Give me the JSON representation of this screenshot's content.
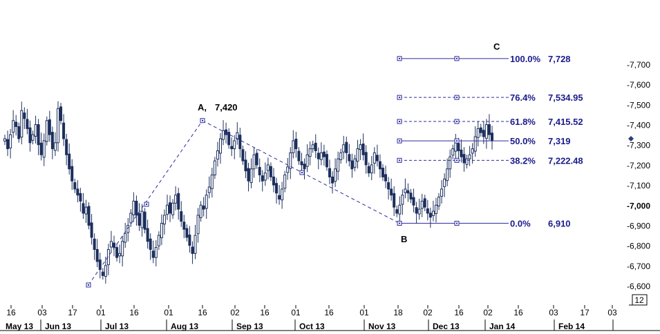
{
  "chart_data": {
    "type": "candlestick",
    "y_axis": {
      "range": [
        6550,
        7780
      ],
      "ticks": [
        "-7,700",
        "-7,600",
        "-7,500",
        "-7,400",
        "-7,300",
        "-7,200",
        "-7,100",
        "-7,000",
        "-6,900",
        "-6,800",
        "-6,700",
        "-6,600"
      ],
      "tick_values": [
        7700,
        7600,
        7500,
        7400,
        7300,
        7200,
        7100,
        7000,
        6900,
        6800,
        6700,
        6600
      ],
      "emphasized_tick": "-7,000",
      "last_value_marker": 7330
    },
    "x_axis": {
      "day_ticks": [
        "16",
        "03",
        "17",
        "01",
        "16",
        "01",
        "16",
        "02",
        "16",
        "01",
        "16",
        "01",
        "18",
        "02",
        "16",
        "02",
        "16",
        "03",
        "17",
        "03"
      ],
      "months": [
        "May 13",
        "Jun 13",
        "Jul 13",
        "Aug 13",
        "Sep 13",
        "Oct 13",
        "Nov 13",
        "Dec 13",
        "Jan 14",
        "Feb 14"
      ],
      "period_box": "12"
    },
    "points": {
      "A": {
        "label": "A,",
        "value": "7,420"
      },
      "B": {
        "label": "B"
      },
      "C": {
        "label": "C"
      }
    },
    "fib_levels": [
      {
        "pct": "100.0%",
        "value": "7,728",
        "price": 7728,
        "style": "solid"
      },
      {
        "pct": "76.4%",
        "value": "7,534.95",
        "price": 7534.95,
        "style": "dashed"
      },
      {
        "pct": "61.8%",
        "value": "7,415.52",
        "price": 7415.52,
        "style": "dashed"
      },
      {
        "pct": "50.0%",
        "value": "7,319",
        "price": 7319,
        "style": "solid"
      },
      {
        "pct": "38.2%",
        "value": "7,222.48",
        "price": 7222.48,
        "style": "dashed"
      },
      {
        "pct": "0.0%",
        "value": "6,910",
        "price": 6910,
        "style": "solid"
      }
    ],
    "series": [
      {
        "values": [
          7330,
          7280,
          7350,
          7420,
          7390,
          7330,
          7470,
          7430,
          7380,
          7310,
          7350,
          7400,
          7300,
          7250,
          7320,
          7420,
          7350,
          7280,
          7310,
          7480,
          7420,
          7330,
          7250,
          7180,
          7120,
          7080,
          7050,
          7020,
          6960,
          6990,
          6900,
          6840,
          6780,
          6720,
          6680,
          6650,
          6700,
          6780,
          6820,
          6790,
          6740,
          6760,
          6820,
          6860,
          6900,
          6960,
          7020,
          6950,
          6900,
          6970,
          6880,
          6820,
          6780,
          6740,
          6790,
          6850,
          6910,
          6950,
          7000,
          6960,
          7010,
          7050,
          6980,
          6920,
          6880,
          6840,
          6800,
          6760,
          6850,
          6950,
          7000,
          6980,
          7050,
          7090,
          7150,
          7220,
          7270,
          7330,
          7370,
          7350,
          7300,
          7280,
          7320,
          7360,
          7280,
          7220,
          7170,
          7120,
          7180,
          7250,
          7200,
          7150,
          7120,
          7160,
          7200,
          7140,
          7100,
          7060,
          7030,
          7080,
          7150,
          7190,
          7260,
          7320,
          7280,
          7220,
          7200,
          7180,
          7250,
          7280,
          7300,
          7270,
          7230,
          7260,
          7240,
          7190,
          7140,
          7110,
          7180,
          7230,
          7260,
          7300,
          7260,
          7220,
          7180,
          7230,
          7280,
          7300,
          7250,
          7200,
          7160,
          7200,
          7260,
          7220,
          7180,
          7140,
          7120,
          7080,
          7050,
          6990,
          6960,
          7000,
          7050,
          7080,
          7060,
          7030,
          7000,
          6960,
          6980,
          7020,
          6990,
          6960,
          6940,
          6970,
          7000,
          7040,
          7080,
          7130,
          7180,
          7240,
          7280,
          7310,
          7270,
          7240,
          7210,
          7230,
          7250,
          7280,
          7340,
          7380,
          7360,
          7340,
          7400,
          7350,
          7320
        ]
      }
    ]
  }
}
